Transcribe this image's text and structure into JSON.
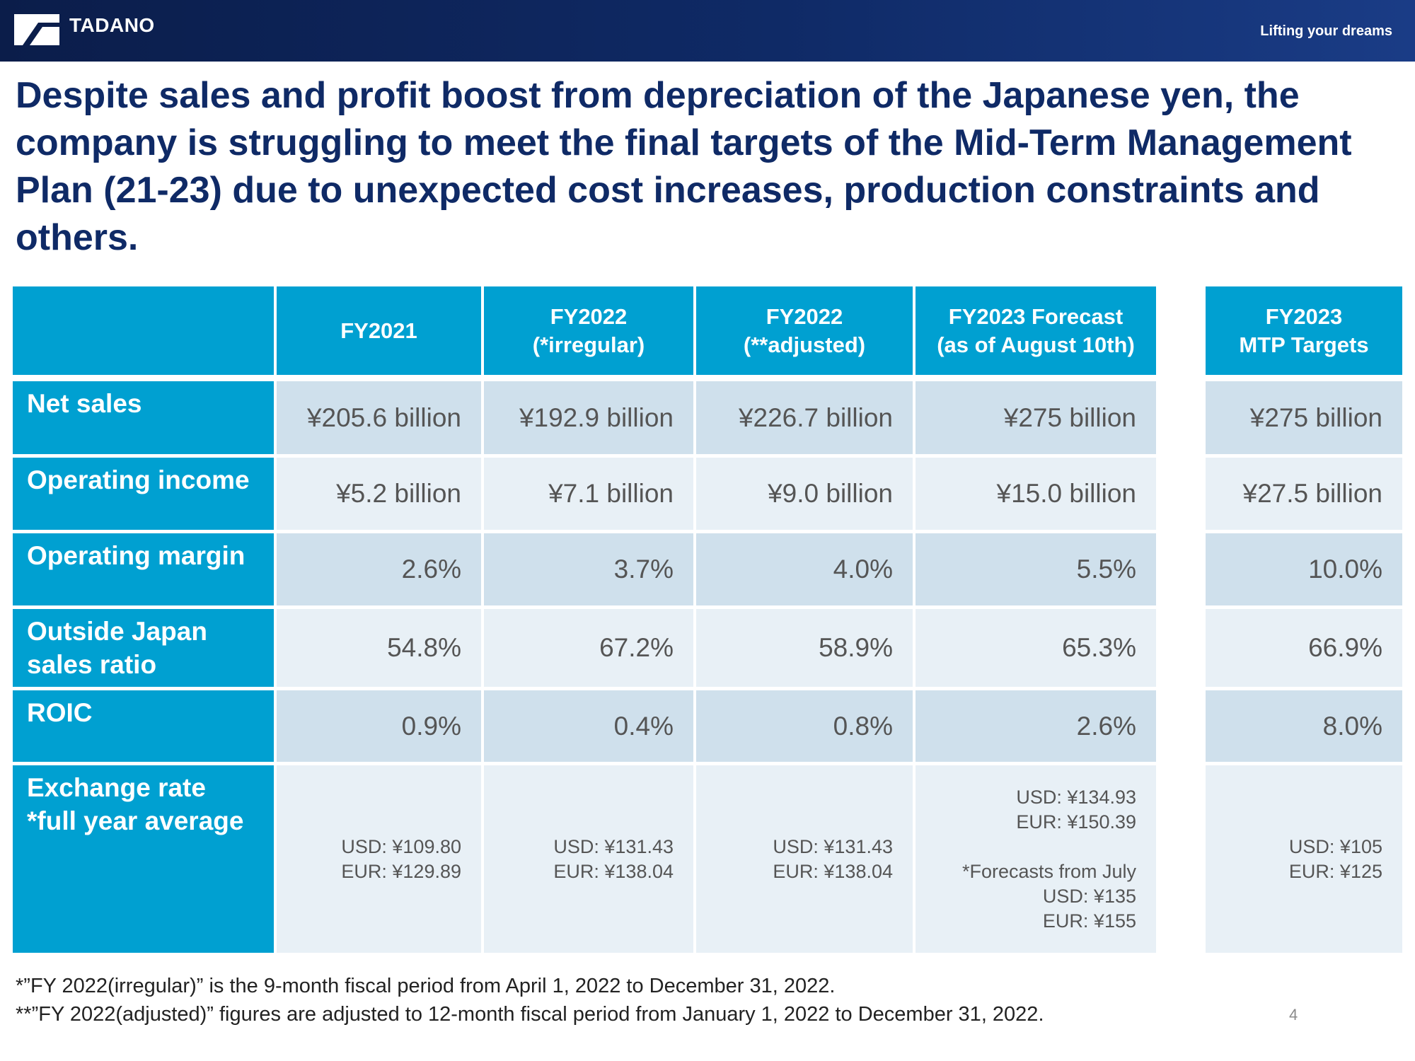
{
  "header": {
    "brand": "TADANO",
    "tagline": "Lifting your dreams",
    "brand_color": "#0f2a66",
    "accent_color": "#00a0d1",
    "logo_icon": "tadano-logo-icon"
  },
  "headline": "Despite sales and profit boost from depreciation of the Japanese yen, the company is struggling to meet the final targets of the Mid-Term Management Plan (21-23) due to unexpected cost increases, production constraints and others.",
  "table": {
    "columns": [
      {
        "line1": "FY2021",
        "line2": ""
      },
      {
        "line1": "FY2022",
        "line2": "(*irregular)"
      },
      {
        "line1": "FY2022",
        "line2": "(**adjusted)"
      },
      {
        "line1": "FY2023 Forecast",
        "line2": "(as of August 10th)"
      },
      {
        "line1": "FY2023",
        "line2": "MTP Targets"
      }
    ],
    "rows": [
      {
        "label_line1": "Net sales",
        "label_line2": "",
        "values": [
          "¥205.6 billion",
          "¥192.9 billion",
          "¥226.7 billion",
          "¥275 billion",
          "¥275 billion"
        ]
      },
      {
        "label_line1": "Operating income",
        "label_line2": "",
        "values": [
          "¥5.2 billion",
          "¥7.1 billion",
          "¥9.0 billion",
          "¥15.0 billion",
          "¥27.5 billion"
        ]
      },
      {
        "label_line1": "Operating margin",
        "label_line2": "",
        "values": [
          "2.6%",
          "3.7%",
          "4.0%",
          "5.5%",
          "10.0%"
        ]
      },
      {
        "label_line1": "Outside Japan",
        "label_line2": "sales ratio",
        "values": [
          "54.8%",
          "67.2%",
          "58.9%",
          "65.3%",
          "66.9%"
        ]
      },
      {
        "label_line1": "ROIC",
        "label_line2": "",
        "values": [
          "0.9%",
          "0.4%",
          "0.8%",
          "2.6%",
          "8.0%"
        ]
      }
    ],
    "exchange": {
      "label_line1": "Exchange rate",
      "label_line2": "*full year average",
      "cells": [
        {
          "usd": "USD: ¥109.80",
          "eur": "EUR: ¥129.89"
        },
        {
          "usd": "USD: ¥131.43",
          "eur": "EUR: ¥138.04"
        },
        {
          "usd": "USD: ¥131.43",
          "eur": "EUR: ¥138.04"
        },
        {
          "usd": "USD: ¥134.93",
          "eur": "EUR: ¥150.39",
          "note": "*Forecasts from July",
          "usd2": "USD: ¥135",
          "eur2": "EUR: ¥155"
        },
        {
          "usd": "USD: ¥105",
          "eur": "EUR: ¥125"
        }
      ]
    }
  },
  "footnotes": [
    "*”FY 2022(irregular)” is the 9-month fiscal period from April 1, 2022 to December 31, 2022.",
    "**”FY 2022(adjusted)” figures are adjusted to 12-month fiscal period from January 1, 2022 to December 31, 2022."
  ],
  "page_number": "4"
}
